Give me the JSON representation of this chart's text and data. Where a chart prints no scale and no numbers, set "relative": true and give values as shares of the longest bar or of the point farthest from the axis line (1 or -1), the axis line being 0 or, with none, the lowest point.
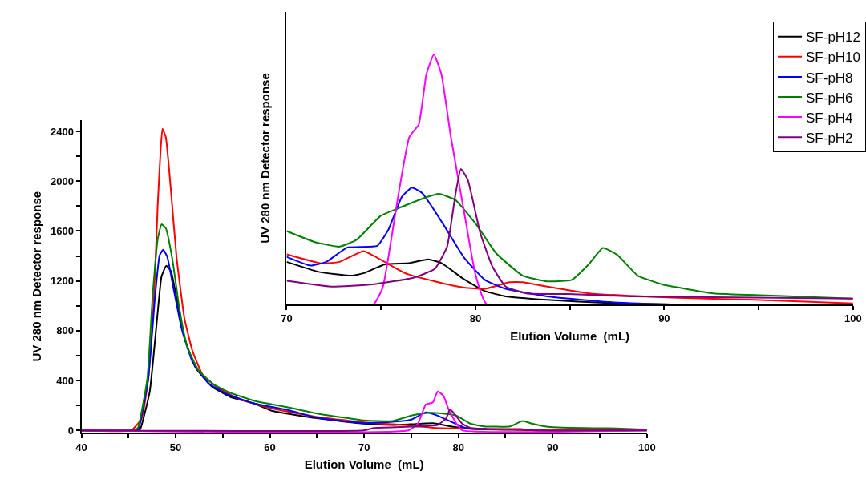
{
  "chart_data": [
    {
      "type": "line",
      "xlabel": "Elution Volume  (mL)",
      "ylabel": "UV 280 nm Detector response",
      "xlim": [
        40,
        100
      ],
      "ylim": [
        -20,
        2490
      ],
      "xticks": [
        40,
        {
          "value": 45,
          "label": null
        },
        50,
        {
          "value": 55,
          "label": null
        },
        60,
        {
          "value": 65,
          "label": null
        },
        70,
        {
          "value": 75,
          "label": null
        },
        80,
        {
          "value": 85,
          "label": null
        },
        90,
        {
          "value": 95,
          "label": null
        },
        100
      ],
      "yticks": [
        0,
        {
          "value": 200,
          "label": null
        },
        400,
        {
          "value": 600,
          "label": null
        },
        800,
        {
          "value": 1000,
          "label": null
        },
        1200,
        {
          "value": 1400,
          "label": null
        },
        1600,
        {
          "value": 1800,
          "label": null
        },
        2000,
        {
          "value": 2200,
          "label": null
        },
        2400
      ],
      "series": [
        {
          "color": "#000000",
          "x": [
            40,
            46.0,
            46.25,
            47.25,
            47.97,
            48.5,
            49.0,
            49.5,
            50.1,
            50.95,
            52.1,
            53.8,
            55.8,
            58.35,
            60.2,
            65,
            70,
            73,
            75,
            77.3,
            79.5,
            81.5,
            85.8,
            90,
            100
          ],
          "values": [
            0,
            0,
            11,
            311,
            848,
            1235,
            1321,
            1278,
            1063,
            741,
            505,
            354,
            268,
            215,
            157,
            97,
            54,
            43,
            49,
            58,
            28,
            11,
            4,
            0,
            0
          ]
        },
        {
          "color": "#ff0000",
          "x": [
            40,
            45.3,
            46.4,
            47.1,
            47.7,
            48.1,
            48.4,
            48.6,
            48.96,
            49.5,
            50.1,
            50.95,
            51.8,
            52.9,
            54.65,
            56.9,
            59.8,
            65,
            70,
            74.4,
            77.3,
            80.1,
            83,
            87,
            100
          ],
          "values": [
            0,
            0,
            97,
            419,
            1063,
            1815,
            2245,
            2421,
            2352,
            1923,
            1385,
            891,
            634,
            440,
            333,
            247,
            183,
            107,
            64,
            43,
            21,
            15,
            11,
            6,
            2
          ]
        },
        {
          "color": "#0000ff",
          "x": [
            40,
            45.8,
            46.1,
            47.1,
            47.8,
            48.3,
            48.68,
            49.1,
            49.8,
            50.67,
            51.8,
            53.5,
            55.5,
            58.35,
            62.05,
            65,
            70,
            73,
            75,
            76.55,
            77.8,
            79.5,
            80.7,
            83
          ],
          "values": [
            0,
            0,
            21,
            419,
            1063,
            1407,
            1450,
            1396,
            1128,
            805,
            548,
            376,
            290,
            215,
            161,
            101,
            58,
            68,
            86,
            144,
            118,
            60,
            21,
            11
          ]
        },
        {
          "color": "#008000",
          "x": [
            40,
            45.6,
            46.0,
            47.0,
            47.54,
            48.1,
            48.5,
            48.96,
            49.67,
            50.4,
            51.2,
            52.4,
            54.1,
            55.8,
            58.35,
            62.05,
            65,
            70,
            73,
            75.0,
            76.7,
            78.4,
            79.8,
            81.25,
            82.7,
            85.5,
            86.8,
            87.8,
            89.5,
            94.4,
            96,
            100
          ],
          "values": [
            0,
            0,
            21,
            419,
            1063,
            1536,
            1654,
            1622,
            1364,
            977,
            677,
            483,
            365,
            301,
            236,
            183,
            135,
            80,
            75,
            118,
            140,
            135,
            118,
            54,
            32,
            32,
            75,
            54,
            28,
            17,
            17,
            6
          ]
        },
        {
          "color": "#ff00ff",
          "x": [
            40,
            74.7,
            75.7,
            76.55,
            77.3,
            77.8,
            78.4,
            79.0,
            79.8,
            80.4,
            100
          ],
          "values": [
            0,
            0,
            54,
            208,
            225,
            311,
            279,
            161,
            54,
            0,
            0
          ]
        },
        {
          "color": "#800080",
          "x": [
            40,
            70,
            71,
            74.4,
            77.8,
            78.7,
            79.1,
            79.5,
            80.4,
            81.25,
            83,
            86.6,
            88,
            100
          ],
          "values": [
            0,
            0,
            19,
            28,
            43,
            97,
            168,
            140,
            54,
            21,
            11,
            11,
            0,
            0
          ]
        }
      ]
    },
    {
      "type": "line",
      "relative": true,
      "legend": "top right",
      "xlabel": "Elution Volume  (mL)",
      "ylabel": "UV 280 nm Detector response",
      "xlim": [
        70,
        100
      ],
      "xticks": [
        70,
        {
          "value": 75,
          "label": null
        },
        80,
        {
          "value": 85,
          "label": null
        },
        90,
        {
          "value": 95,
          "label": null
        },
        100
      ],
      "series": [
        {
          "name": "SF-pH12",
          "color": "#000000",
          "x": [
            70,
            71.7,
            73.45,
            74.1,
            75.2,
            76.5,
            77.5,
            78.2,
            79.4,
            80.5,
            81.6,
            83.8,
            87.1,
            90.4,
            100
          ],
          "values": [
            0.17,
            0.13,
            0.115,
            0.125,
            0.16,
            0.165,
            0.18,
            0.165,
            0.1,
            0.053,
            0.032,
            0.018,
            0.005,
            0,
            0
          ]
        },
        {
          "name": "SF-pH10",
          "color": "#ff0000",
          "x": [
            70,
            71.9,
            72.8,
            74.07,
            75.0,
            76.3,
            77.85,
            79.4,
            80.5,
            81.8,
            82.5,
            83.8,
            86.0,
            90.4,
            94.8,
            100
          ],
          "values": [
            0.2,
            0.163,
            0.17,
            0.213,
            0.178,
            0.124,
            0.092,
            0.067,
            0.062,
            0.089,
            0.089,
            0.071,
            0.044,
            0.027,
            0.018,
            0.004
          ]
        },
        {
          "name": "SF-pH8",
          "color": "#0000ff",
          "x": [
            70,
            71.25,
            72.1,
            73.2,
            74.8,
            75.4,
            76.1,
            76.64,
            77.2,
            78.3,
            79.4,
            80.5,
            81.6,
            83.8,
            87.1,
            90.4,
            100
          ],
          "values": [
            0.19,
            0.155,
            0.17,
            0.227,
            0.234,
            0.3,
            0.43,
            0.467,
            0.444,
            0.32,
            0.187,
            0.098,
            0.062,
            0.032,
            0.009,
            0,
            0
          ]
        },
        {
          "name": "SF-pH6",
          "color": "#008000",
          "x": [
            70,
            71.5,
            72.8,
            73.7,
            75.0,
            76.1,
            77.2,
            78.07,
            78.95,
            80.04,
            81.1,
            82.5,
            83.8,
            85.1,
            86.0,
            86.75,
            87.5,
            88.6,
            89.9,
            92.6,
            95.4,
            100
          ],
          "values": [
            0.293,
            0.249,
            0.231,
            0.258,
            0.355,
            0.39,
            0.423,
            0.442,
            0.417,
            0.32,
            0.204,
            0.115,
            0.092,
            0.098,
            0.16,
            0.226,
            0.199,
            0.115,
            0.08,
            0.044,
            0.036,
            0.023
          ]
        },
        {
          "name": "SF-pH4",
          "color": "#ff00ff",
          "x": [
            70,
            74.6,
            75.1,
            75.9,
            76.5,
            77.0,
            77.4,
            77.8,
            78.2,
            78.7,
            79.4,
            80.0,
            80.6,
            100
          ],
          "values": [
            0,
            0,
            0.07,
            0.43,
            0.67,
            0.72,
            0.92,
            1.0,
            0.92,
            0.67,
            0.37,
            0.12,
            0,
            0
          ]
        },
        {
          "name": "SF-pH2",
          "color": "#800080",
          "x": [
            70,
            72.35,
            74.55,
            76.75,
            77.85,
            78.5,
            78.95,
            79.23,
            79.6,
            80.26,
            80.9,
            81.6,
            82.7,
            84.9,
            88.2,
            100
          ],
          "values": [
            0.094,
            0.071,
            0.08,
            0.107,
            0.142,
            0.231,
            0.444,
            0.542,
            0.497,
            0.284,
            0.151,
            0.071,
            0.044,
            0.041,
            0.032,
            0.023
          ]
        }
      ]
    }
  ]
}
